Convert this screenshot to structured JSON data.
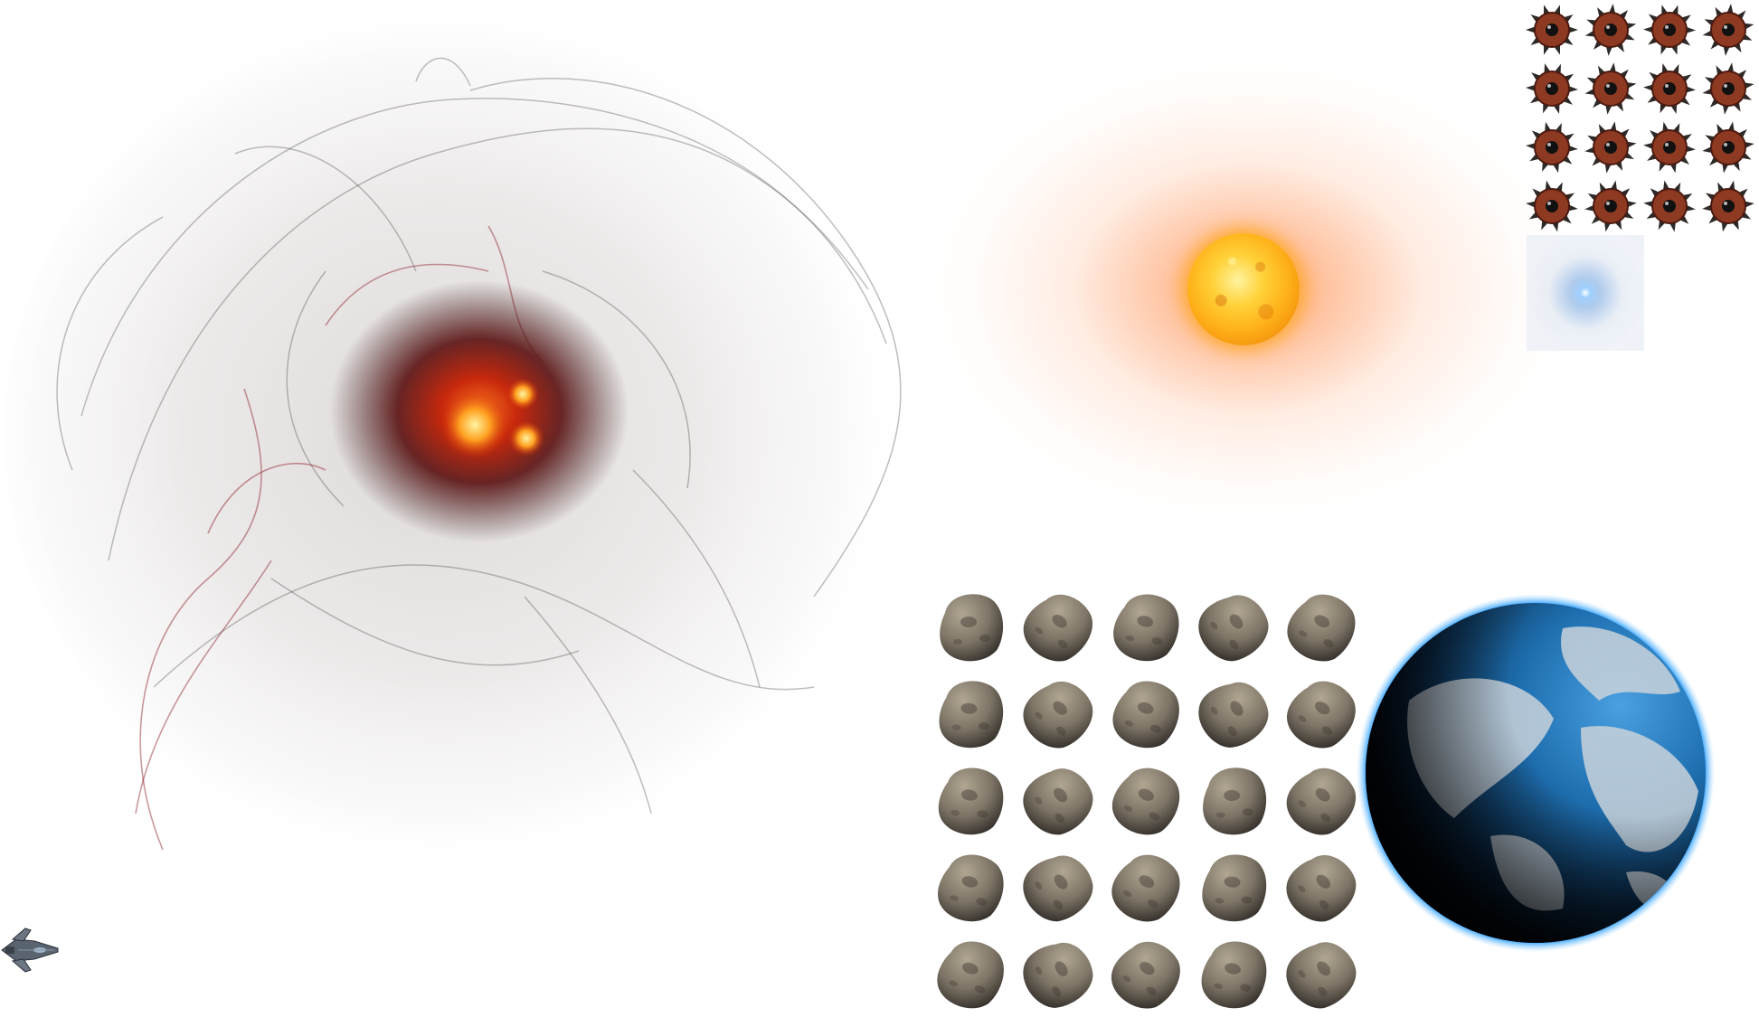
{
  "sheet": {
    "background": "#ffffff"
  },
  "sprites": {
    "nebula": {
      "icon": "nebula-icon",
      "core_color": "#ff5a10",
      "wisp_color": "#8a1a24"
    },
    "sun": {
      "icon": "sun-icon",
      "core_color": "#ffb21a",
      "glow_color": "#ff8c3c"
    },
    "mines": {
      "icon": "spiked-mine-icon",
      "rows": 4,
      "cols": 4,
      "body_color": "#8e3a22",
      "eye_color": "#111111"
    },
    "flare": {
      "icon": "blue-light-flare-icon",
      "color": "#9fd0ff"
    },
    "asteroids": {
      "icon": "asteroid-icon",
      "rows": 5,
      "cols": 5,
      "color": "#7d7466"
    },
    "planet": {
      "icon": "earth-planet-icon",
      "ocean_color": "#1e6fb0",
      "atmosphere_color": "#3fa8ff"
    },
    "ship": {
      "icon": "spaceship-icon",
      "color": "#5a6470"
    }
  }
}
